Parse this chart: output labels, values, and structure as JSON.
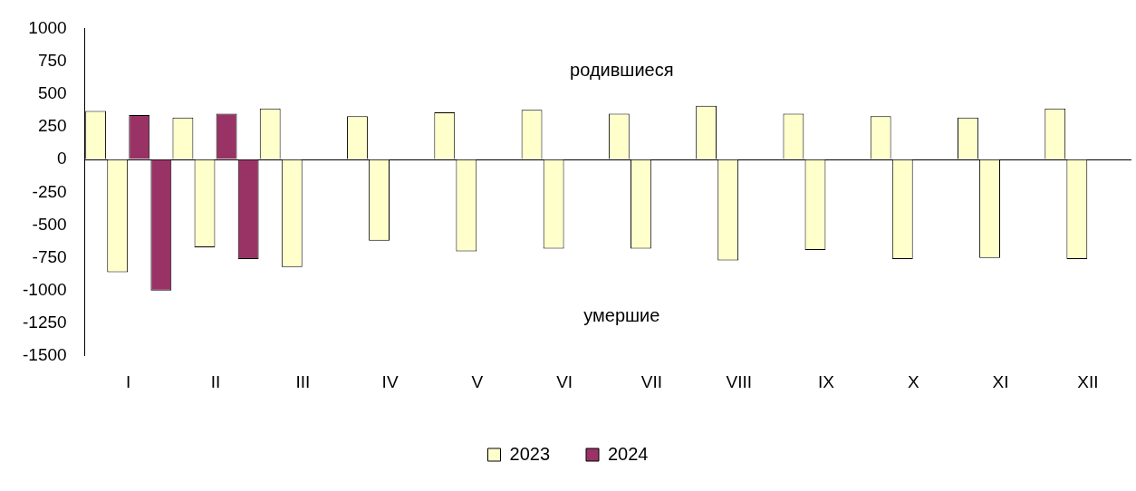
{
  "chart_data": {
    "type": "bar",
    "categories": [
      "I",
      "II",
      "III",
      "IV",
      "V",
      "VI",
      "VII",
      "VIII",
      "IX",
      "X",
      "XI",
      "XII"
    ],
    "series": [
      {
        "name": "2023",
        "color": "#ffffcc",
        "values": [
          370,
          320,
          390,
          330,
          360,
          380,
          350,
          410,
          350,
          330,
          320,
          390
        ]
      },
      {
        "color": "#ffffcc",
        "values": [
          -860,
          -670,
          -820,
          -620,
          -700,
          -680,
          -680,
          -770,
          -690,
          -760,
          -750,
          -760
        ]
      },
      {
        "name": "2024",
        "color": "#993366",
        "values": [
          340,
          350,
          null,
          null,
          null,
          null,
          null,
          null,
          null,
          null,
          null,
          null
        ]
      },
      {
        "color": "#993366",
        "values": [
          -1000,
          -760,
          null,
          null,
          null,
          null,
          null,
          null,
          null,
          null,
          null,
          null
        ]
      }
    ],
    "ylim": [
      -1500,
      1000
    ],
    "yticks": [
      -1500,
      -1250,
      -1000,
      -750,
      -500,
      -250,
      0,
      250,
      500,
      750,
      1000
    ],
    "annotations": [
      "родившиеся",
      "умершие"
    ],
    "legend": "bottom"
  }
}
